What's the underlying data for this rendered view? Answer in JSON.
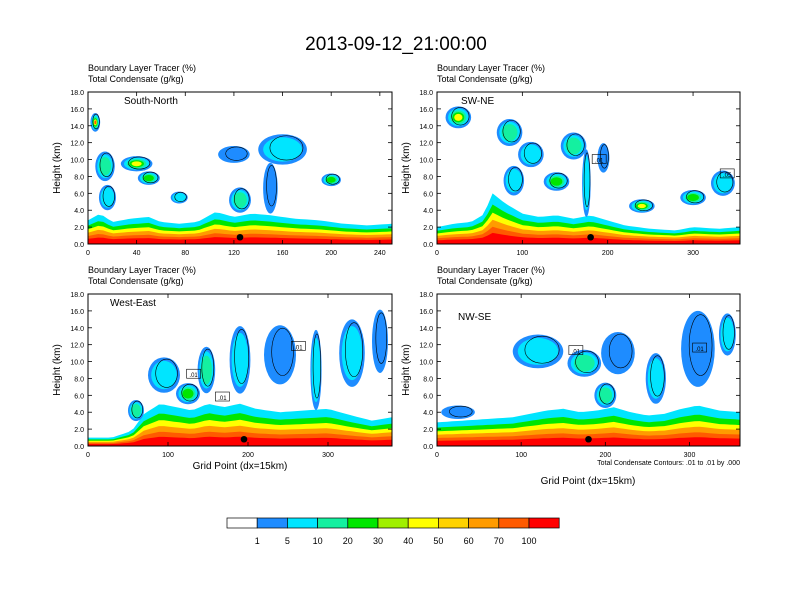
{
  "figure": {
    "title": "2013-09-12_21:00:00",
    "contour_note": "Total Condensate Contours: .01 to .01 by .000"
  },
  "colorbar": {
    "labels": [
      "1",
      "5",
      "10",
      "20",
      "30",
      "40",
      "50",
      "60",
      "70",
      "100"
    ],
    "colors": [
      "#ffffff",
      "#1e8cff",
      "#00e5ff",
      "#14f0a0",
      "#00e600",
      "#a0f000",
      "#ffff00",
      "#ffd200",
      "#ff9b00",
      "#ff5a00",
      "#ff0000"
    ]
  },
  "chart_data": [
    {
      "type": "heatmap",
      "title": "South-North",
      "label_left_1": "Boundary Layer Tracer   (%)",
      "label_left_2": "Total Condensate   (g/kg)",
      "xlabel": "",
      "ylabel": "Height (km)",
      "xlim": [
        0,
        250
      ],
      "ylim": [
        0,
        18
      ],
      "xticks": [
        "0",
        "40",
        "80",
        "120",
        "160",
        "200",
        "240"
      ],
      "xtick_values": [
        0,
        40,
        80,
        120,
        160,
        200,
        240
      ],
      "yticks": [
        "0.0",
        "2.0",
        "4.0",
        "6.0",
        "8.0",
        "10.0",
        "12.0",
        "14.0",
        "16.0",
        "18.0"
      ],
      "marker_x": 125,
      "contour_labels": [],
      "top": [
        {
          "x": 0,
          "h": 2.8
        },
        {
          "x": 10,
          "h": 3.6
        },
        {
          "x": 20,
          "h": 2.6
        },
        {
          "x": 35,
          "h": 3.0
        },
        {
          "x": 50,
          "h": 3.2
        },
        {
          "x": 60,
          "h": 2.6
        },
        {
          "x": 75,
          "h": 2.4
        },
        {
          "x": 90,
          "h": 2.6
        },
        {
          "x": 105,
          "h": 3.8
        },
        {
          "x": 120,
          "h": 3.2
        },
        {
          "x": 135,
          "h": 3.6
        },
        {
          "x": 150,
          "h": 3.4
        },
        {
          "x": 170,
          "h": 3.0
        },
        {
          "x": 190,
          "h": 2.8
        },
        {
          "x": 210,
          "h": 2.4
        },
        {
          "x": 230,
          "h": 2.2
        },
        {
          "x": 250,
          "h": 2.4
        }
      ],
      "blobs": [
        {
          "x": 6,
          "y": 14.4,
          "w": 8,
          "h": 2.2,
          "l": 7
        },
        {
          "x": 14,
          "y": 9.2,
          "w": 16,
          "h": 3.5,
          "l": 4
        },
        {
          "x": 16,
          "y": 5.5,
          "w": 14,
          "h": 3.0,
          "l": 3
        },
        {
          "x": 40,
          "y": 9.5,
          "w": 26,
          "h": 1.8,
          "l": 6
        },
        {
          "x": 50,
          "y": 7.8,
          "w": 18,
          "h": 1.6,
          "l": 5
        },
        {
          "x": 75,
          "y": 5.5,
          "w": 14,
          "h": 1.4,
          "l": 3
        },
        {
          "x": 160,
          "y": 11.2,
          "w": 40,
          "h": 3.6,
          "l": 3
        },
        {
          "x": 120,
          "y": 10.6,
          "w": 26,
          "h": 2.0,
          "l": 1
        },
        {
          "x": 150,
          "y": 6.6,
          "w": 12,
          "h": 6.0,
          "l": 2
        },
        {
          "x": 200,
          "y": 7.6,
          "w": 16,
          "h": 1.5,
          "l": 5
        },
        {
          "x": 125,
          "y": 5.2,
          "w": 18,
          "h": 3.0,
          "l": 4
        }
      ]
    },
    {
      "type": "heatmap",
      "title": "SW-NE",
      "label_left_1": "Boundary Layer Tracer   (%)",
      "label_left_2": "Total Condensate   (g/kg)",
      "xlabel": "",
      "ylabel": "Height (km)",
      "xlim": [
        0,
        355
      ],
      "ylim": [
        0,
        18
      ],
      "xticks": [
        "0",
        "100",
        "200",
        "300"
      ],
      "xtick_values": [
        0,
        100,
        200,
        300
      ],
      "yticks": [
        "0.0",
        "2.0",
        "4.0",
        "6.0",
        "8.0",
        "10.0",
        "12.0",
        "14.0",
        "16.0",
        "18.0"
      ],
      "marker_x": 180,
      "contour_labels": [
        {
          "x": 190,
          "y": 10.0,
          "text": ".01"
        },
        {
          "x": 340,
          "y": 8.3,
          "text": ".05"
        }
      ],
      "top": [
        {
          "x": 0,
          "h": 2.0
        },
        {
          "x": 20,
          "h": 2.4
        },
        {
          "x": 40,
          "h": 2.6
        },
        {
          "x": 55,
          "h": 3.5
        },
        {
          "x": 65,
          "h": 6.0
        },
        {
          "x": 80,
          "h": 4.8
        },
        {
          "x": 100,
          "h": 3.6
        },
        {
          "x": 120,
          "h": 3.2
        },
        {
          "x": 140,
          "h": 3.4
        },
        {
          "x": 160,
          "h": 3.0
        },
        {
          "x": 180,
          "h": 3.4
        },
        {
          "x": 200,
          "h": 2.8
        },
        {
          "x": 220,
          "h": 2.2
        },
        {
          "x": 250,
          "h": 1.8
        },
        {
          "x": 280,
          "h": 1.6
        },
        {
          "x": 300,
          "h": 2.0
        },
        {
          "x": 330,
          "h": 1.8
        },
        {
          "x": 355,
          "h": 2.0
        }
      ],
      "blobs": [
        {
          "x": 25,
          "y": 15.0,
          "w": 30,
          "h": 2.6,
          "l": 6
        },
        {
          "x": 85,
          "y": 13.2,
          "w": 30,
          "h": 3.2,
          "l": 4
        },
        {
          "x": 110,
          "y": 10.6,
          "w": 30,
          "h": 3.0,
          "l": 3
        },
        {
          "x": 160,
          "y": 11.6,
          "w": 30,
          "h": 3.2,
          "l": 4
        },
        {
          "x": 195,
          "y": 10.2,
          "w": 14,
          "h": 3.5,
          "l": 2
        },
        {
          "x": 90,
          "y": 7.5,
          "w": 24,
          "h": 3.5,
          "l": 3
        },
        {
          "x": 140,
          "y": 7.4,
          "w": 30,
          "h": 2.2,
          "l": 5
        },
        {
          "x": 175,
          "y": 7.2,
          "w": 10,
          "h": 8.0,
          "l": 3
        },
        {
          "x": 335,
          "y": 7.2,
          "w": 28,
          "h": 3.0,
          "l": 3
        },
        {
          "x": 300,
          "y": 5.5,
          "w": 30,
          "h": 1.8,
          "l": 5
        },
        {
          "x": 240,
          "y": 4.5,
          "w": 30,
          "h": 1.6,
          "l": 6
        }
      ]
    },
    {
      "type": "heatmap",
      "title": "West-East",
      "label_left_1": "Boundary Layer Tracer   (%)",
      "label_left_2": "Total Condensate   (g/kg)",
      "xlabel": "Grid Point (dx=15km)",
      "ylabel": "Height (km)",
      "xlim": [
        0,
        380
      ],
      "ylim": [
        0,
        18
      ],
      "xticks": [
        "0",
        "100",
        "200",
        "300"
      ],
      "xtick_values": [
        0,
        100,
        200,
        300
      ],
      "yticks": [
        "0.0",
        "2.0",
        "4.0",
        "6.0",
        "8.0",
        "10.0",
        "12.0",
        "14.0",
        "16.0",
        "18.0"
      ],
      "marker_x": 195,
      "contour_labels": [
        {
          "x": 132,
          "y": 8.5,
          "text": ".01"
        },
        {
          "x": 168,
          "y": 5.8,
          "text": ".01"
        },
        {
          "x": 263,
          "y": 11.8,
          "text": ".01"
        }
      ],
      "top": [
        {
          "x": 0,
          "h": 1.0
        },
        {
          "x": 30,
          "h": 1.0
        },
        {
          "x": 55,
          "h": 1.8
        },
        {
          "x": 70,
          "h": 3.8
        },
        {
          "x": 90,
          "h": 5.0
        },
        {
          "x": 110,
          "h": 4.6
        },
        {
          "x": 130,
          "h": 4.2
        },
        {
          "x": 150,
          "h": 5.0
        },
        {
          "x": 170,
          "h": 4.6
        },
        {
          "x": 190,
          "h": 5.0
        },
        {
          "x": 210,
          "h": 4.4
        },
        {
          "x": 240,
          "h": 4.0
        },
        {
          "x": 270,
          "h": 4.2
        },
        {
          "x": 300,
          "h": 4.4
        },
        {
          "x": 330,
          "h": 3.6
        },
        {
          "x": 355,
          "h": 3.0
        },
        {
          "x": 380,
          "h": 3.4
        }
      ],
      "blobs": [
        {
          "x": 95,
          "y": 8.4,
          "w": 40,
          "h": 4.2,
          "l": 3
        },
        {
          "x": 148,
          "y": 9.0,
          "w": 22,
          "h": 5.5,
          "l": 4
        },
        {
          "x": 190,
          "y": 10.2,
          "w": 26,
          "h": 8.0,
          "l": 3
        },
        {
          "x": 240,
          "y": 10.8,
          "w": 40,
          "h": 7.0,
          "l": 2
        },
        {
          "x": 285,
          "y": 9.0,
          "w": 14,
          "h": 9.5,
          "l": 3
        },
        {
          "x": 330,
          "y": 11.0,
          "w": 32,
          "h": 8.0,
          "l": 3
        },
        {
          "x": 365,
          "y": 12.4,
          "w": 20,
          "h": 7.5,
          "l": 2
        },
        {
          "x": 60,
          "y": 4.2,
          "w": 20,
          "h": 2.5,
          "l": 4
        },
        {
          "x": 125,
          "y": 6.2,
          "w": 30,
          "h": 2.5,
          "l": 5
        }
      ]
    },
    {
      "type": "heatmap",
      "title": "NW-SE",
      "label_left_1": "Boundary Layer Tracer   (%)",
      "label_left_2": "Total Condensate   (g/kg)",
      "xlabel": "Grid Point (dx=15km)",
      "ylabel": "Height (km)",
      "xlim": [
        0,
        360
      ],
      "ylim": [
        0,
        18
      ],
      "xticks": [
        "0",
        "100",
        "200",
        "300"
      ],
      "xtick_values": [
        0,
        100,
        200,
        300
      ],
      "yticks": [
        "0.0",
        "2.0",
        "4.0",
        "6.0",
        "8.0",
        "10.0",
        "12.0",
        "14.0",
        "16.0",
        "18.0"
      ],
      "marker_x": 180,
      "contour_labels": [
        {
          "x": 165,
          "y": 11.3,
          "text": ".01"
        },
        {
          "x": 312,
          "y": 11.6,
          "text": ".01"
        }
      ],
      "top": [
        {
          "x": 0,
          "h": 2.8
        },
        {
          "x": 30,
          "h": 3.0
        },
        {
          "x": 60,
          "h": 3.2
        },
        {
          "x": 90,
          "h": 3.4
        },
        {
          "x": 110,
          "h": 3.8
        },
        {
          "x": 130,
          "h": 4.2
        },
        {
          "x": 150,
          "h": 4.4
        },
        {
          "x": 170,
          "h": 4.0
        },
        {
          "x": 190,
          "h": 4.2
        },
        {
          "x": 210,
          "h": 4.6
        },
        {
          "x": 230,
          "h": 4.0
        },
        {
          "x": 250,
          "h": 3.6
        },
        {
          "x": 270,
          "h": 3.8
        },
        {
          "x": 290,
          "h": 4.4
        },
        {
          "x": 310,
          "h": 4.8
        },
        {
          "x": 335,
          "h": 4.2
        },
        {
          "x": 360,
          "h": 4.0
        }
      ],
      "blobs": [
        {
          "x": 120,
          "y": 11.2,
          "w": 60,
          "h": 4.0,
          "l": 3
        },
        {
          "x": 175,
          "y": 9.8,
          "w": 40,
          "h": 3.2,
          "l": 4
        },
        {
          "x": 215,
          "y": 11.0,
          "w": 40,
          "h": 5.0,
          "l": 2
        },
        {
          "x": 260,
          "y": 8.0,
          "w": 24,
          "h": 6.0,
          "l": 3
        },
        {
          "x": 310,
          "y": 11.5,
          "w": 40,
          "h": 9.0,
          "l": 2
        },
        {
          "x": 345,
          "y": 13.2,
          "w": 20,
          "h": 5.0,
          "l": 3
        },
        {
          "x": 25,
          "y": 4.0,
          "w": 40,
          "h": 1.6,
          "l": 1
        },
        {
          "x": 200,
          "y": 6.0,
          "w": 26,
          "h": 3.0,
          "l": 4
        }
      ]
    }
  ]
}
